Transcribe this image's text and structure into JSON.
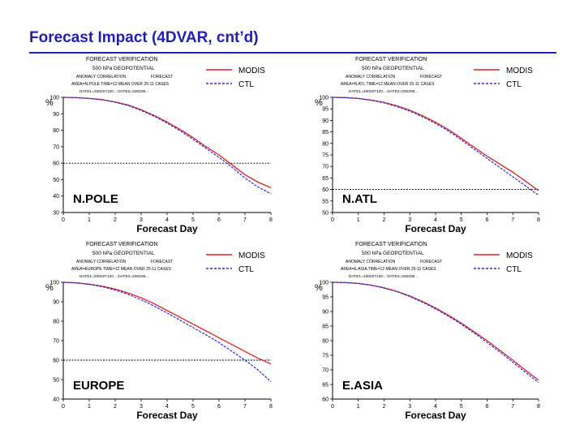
{
  "slide": {
    "title": "Forecast Impact (4DVAR, cnt’d)"
  },
  "colors": {
    "modis": "#e02020",
    "ctl": "#2a2ae0",
    "threshold": "#000000",
    "title": "#1f1fb8"
  },
  "chart_data": [
    {
      "type": "line",
      "region_label": "N.POLE",
      "header": {
        "line1": "FORECAST VERIFICATION",
        "line2": "500 hPa GEOPOTENTIAL",
        "line3a": "ANOMALY CORRELATION",
        "line3b": "FORECAST",
        "line4": "AREA=N.POLE TIME=12 MEAN OVER 25-11 CASES",
        "line5": "DATE1=200207120... DATE2=200208..."
      },
      "ylabel": "%",
      "xlabel": "Forecast Day",
      "ylim": [
        30,
        100
      ],
      "yticks": [
        30,
        40,
        50,
        60,
        70,
        80,
        90,
        100
      ],
      "xticks": [
        0,
        1,
        2,
        3,
        4,
        5,
        6,
        7,
        8
      ],
      "threshold": 60,
      "legend": [
        "MODIS",
        "CTL"
      ],
      "x": [
        0,
        0.5,
        1,
        1.5,
        2,
        2.5,
        3,
        3.5,
        4,
        4.5,
        5,
        5.5,
        6,
        6.5,
        7,
        7.5,
        8
      ],
      "series": [
        {
          "name": "MODIS",
          "values": [
            100,
            99.8,
            99.3,
            98.6,
            97.2,
            95.3,
            92.5,
            89,
            85,
            80.5,
            75.5,
            70,
            65,
            59,
            53,
            48.5,
            45
          ]
        },
        {
          "name": "CTL",
          "values": [
            100,
            99.8,
            99.3,
            98.5,
            97.0,
            95.0,
            92.0,
            88.5,
            84.3,
            79.7,
            74.5,
            69,
            63.5,
            57.5,
            51,
            45.5,
            41.5
          ]
        }
      ]
    },
    {
      "type": "line",
      "region_label": "N.ATL",
      "header": {
        "line1": "FORECAST VERIFICATION",
        "line2": "500 hPa GEOPOTENTIAL",
        "line3a": "ANOMALY CORRELATION",
        "line3b": "FORECAST",
        "line4": "AREA=N.ATL TIME=12 MEAN OVER 25-11 CASES",
        "line5": "DATE1=200207120... DATE2=200208..."
      },
      "ylabel": "%",
      "xlabel": "Forecast Day",
      "ylim": [
        50,
        100
      ],
      "yticks": [
        50,
        55,
        60,
        65,
        70,
        75,
        80,
        85,
        90,
        95,
        100
      ],
      "xticks": [
        0,
        1,
        2,
        3,
        4,
        5,
        6,
        7,
        8
      ],
      "threshold": 60,
      "legend": [
        "MODIS",
        "CTL"
      ],
      "x": [
        0,
        0.5,
        1,
        1.5,
        2,
        2.5,
        3,
        3.5,
        4,
        4.5,
        5,
        5.5,
        6,
        6.5,
        7,
        7.5,
        8
      ],
      "series": [
        {
          "name": "MODIS",
          "values": [
            100,
            99.9,
            99.5,
            98.8,
            97.8,
            96.3,
            94.4,
            92,
            89.2,
            86,
            82.2,
            78.3,
            74.5,
            71,
            67.5,
            63.5,
            59.5
          ]
        },
        {
          "name": "CTL",
          "values": [
            100,
            99.9,
            99.5,
            98.7,
            97.6,
            96.0,
            94.0,
            91.5,
            88.7,
            85.4,
            81.5,
            77.5,
            73.5,
            69.5,
            65.5,
            61.5,
            57.5
          ]
        }
      ]
    },
    {
      "type": "line",
      "region_label": "EUROPE",
      "header": {
        "line1": "FORECAST VERIFICATION",
        "line2": "500 hPa GEOPOTENTIAL",
        "line3a": "ANOMALY CORRELATION",
        "line3b": "FORECAST",
        "line4": "AREA=EUROPE TIME=12 MEAN OVER 25-11 CASES",
        "line5": "DATE1=200207120... DATE2=200208..."
      },
      "ylabel": "%",
      "xlabel": "Forecast Day",
      "ylim": [
        40,
        100
      ],
      "yticks": [
        40,
        50,
        60,
        70,
        80,
        90,
        100
      ],
      "xticks": [
        0,
        1,
        2,
        3,
        4,
        5,
        6,
        7,
        8
      ],
      "threshold": 60,
      "legend": [
        "MODIS",
        "CTL"
      ],
      "x": [
        0,
        0.5,
        1,
        1.5,
        2,
        2.5,
        3,
        3.5,
        4,
        4.5,
        5,
        5.5,
        6,
        6.5,
        7,
        7.5,
        8
      ],
      "series": [
        {
          "name": "MODIS",
          "values": [
            100,
            99.7,
            99,
            98,
            96.5,
            94.5,
            92,
            89,
            85.5,
            82,
            78.5,
            75,
            71.5,
            68,
            64.5,
            61,
            58
          ]
        },
        {
          "name": "CTL",
          "values": [
            100,
            99.7,
            98.9,
            97.7,
            96.0,
            93.8,
            91.0,
            87.8,
            84.2,
            80.5,
            76.7,
            73,
            69,
            64.5,
            60,
            55,
            49
          ]
        }
      ]
    },
    {
      "type": "line",
      "region_label": "E.ASIA",
      "header": {
        "line1": "FORECAST VERIFICATION",
        "line2": "500 hPa GEOPOTENTIAL",
        "line3a": "ANOMALY CORRELATION",
        "line3b": "FORECAST",
        "line4": "AREA=E.ASIA TIME=12 MEAN OVER 25-11 CASES",
        "line5": "DATE1=200207120... DATE2=200208..."
      },
      "ylabel": "%",
      "xlabel": "Forecast Day",
      "ylim": [
        60,
        100
      ],
      "yticks": [
        60,
        65,
        70,
        75,
        80,
        85,
        90,
        95,
        100
      ],
      "xticks": [
        0,
        1,
        2,
        3,
        4,
        5,
        6,
        7,
        8
      ],
      "threshold": null,
      "legend": [
        "MODIS",
        "CTL"
      ],
      "x": [
        0,
        0.5,
        1,
        1.5,
        2,
        2.5,
        3,
        3.5,
        4,
        4.5,
        5,
        5.5,
        6,
        6.5,
        7,
        7.5,
        8
      ],
      "series": [
        {
          "name": "MODIS",
          "values": [
            100,
            99.9,
            99.6,
            99.0,
            98.1,
            96.9,
            95.3,
            93.4,
            91.2,
            88.7,
            86.0,
            83.0,
            80.0,
            76.7,
            73.3,
            69.8,
            66.5
          ]
        },
        {
          "name": "CTL",
          "values": [
            100,
            99.9,
            99.6,
            99.0,
            98.0,
            96.8,
            95.1,
            93.1,
            90.9,
            88.4,
            85.6,
            82.6,
            79.4,
            76.1,
            72.6,
            69.1,
            65.7
          ]
        }
      ]
    }
  ]
}
